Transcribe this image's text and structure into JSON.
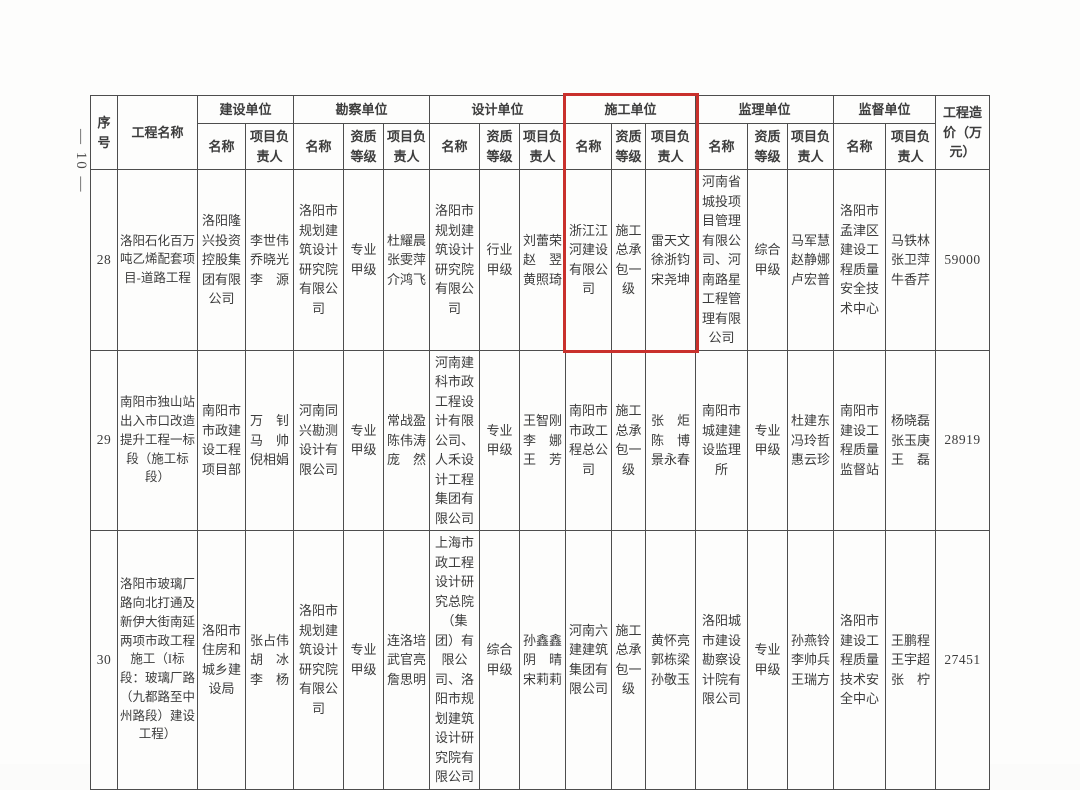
{
  "page": {
    "page_number": "— 10 —",
    "highlight_color": "#c9302c"
  },
  "header": {
    "col_index": "序号",
    "col_project": "工程名称",
    "col_cost": "工程造价（万元）",
    "sub_name": "名称",
    "sub_grade": "资质等级",
    "sub_manager": "项目负责人",
    "groups": {
      "jianshe": "建设单位",
      "kancha": "勘察单位",
      "sheji": "设计单位",
      "shigong": "施工单位",
      "jianli": "监理单位",
      "jiandu": "监督单位"
    }
  },
  "highlight": {
    "target_group": "施工单位",
    "rows_covered": [
      "header",
      "28"
    ]
  },
  "rows": [
    {
      "no": "28",
      "project": "洛阳石化百万吨乙烯配套项目-道路工程",
      "jianshe": {
        "name": "洛阳隆兴投资控股集团有限公司",
        "manager": [
          "李世伟",
          "乔晓光",
          "李　源"
        ]
      },
      "kancha": {
        "name": "洛阳市规划建筑设计研究院有限公司",
        "grade": "专业甲级",
        "manager": [
          "杜耀晨",
          "张雯萍",
          "介鸿飞"
        ]
      },
      "sheji": {
        "name": "洛阳市规划建筑设计研究院有限公司",
        "grade": "行业甲级",
        "manager": [
          "刘蕾荣",
          "赵　翌",
          "黄照琦"
        ]
      },
      "shigong": {
        "name": "浙江江河建设有限公司",
        "grade": "施工总承包一级",
        "manager": [
          "雷天文",
          "徐浙钧",
          "宋尧坤"
        ]
      },
      "jianli": {
        "name": "河南省城投项目管理有限公司、河南路星工程管理有限公司",
        "grade": "综合甲级",
        "manager": [
          "马军慧",
          "赵静娜",
          "卢宏普"
        ]
      },
      "jiandu": {
        "name": "洛阳市孟津区建设工程质量安全技术中心",
        "manager": [
          "马铁林",
          "张卫萍",
          "牛香芹"
        ]
      },
      "cost": "59000"
    },
    {
      "no": "29",
      "project": "南阳市独山站出入市口改造提升工程一标段（施工标段）",
      "jianshe": {
        "name": "南阳市市政建设工程项目部",
        "manager": [
          "万　钊",
          "马　帅",
          "倪相娟"
        ]
      },
      "kancha": {
        "name": "河南同兴勘测设计有限公司",
        "grade": "专业甲级",
        "manager": [
          "常战盈",
          "陈伟涛",
          "庞　然"
        ]
      },
      "sheji": {
        "name": "河南建科市政工程设计有限公司、人禾设计工程集团有限公司",
        "grade": "专业甲级",
        "manager": [
          "王智刚",
          "李　娜",
          "王　芳"
        ]
      },
      "shigong": {
        "name": "南阳市市政工程总公司",
        "grade": "施工总承包一级",
        "manager": [
          "张　炬",
          "陈　博",
          "景永春"
        ]
      },
      "jianli": {
        "name": "南阳市城建建设监理所",
        "grade": "专业甲级",
        "manager": [
          "杜建东",
          "冯玲哲",
          "惠云珍"
        ]
      },
      "jiandu": {
        "name": "南阳市建设工程质量监督站",
        "manager": [
          "杨晓磊",
          "张玉庚",
          "王　磊"
        ]
      },
      "cost": "28919"
    },
    {
      "no": "30",
      "project": "洛阳市玻璃厂路向北打通及新伊大街南延两项市政工程施工（I标段：玻璃厂路（九都路至中州路段）建设工程）",
      "jianshe": {
        "name": "洛阳市住房和城乡建设局",
        "manager": [
          "张占伟",
          "胡　冰",
          "李　杨"
        ]
      },
      "kancha": {
        "name": "洛阳市规划建筑设计研究院有限公司",
        "grade": "专业甲级",
        "manager": [
          "连洛培",
          "武官亮",
          "詹思明"
        ]
      },
      "sheji": {
        "name": "上海市政工程设计研究总院（集团）有限公司、洛阳市规划建筑设计研究院有限公司",
        "grade": "综合甲级",
        "manager": [
          "孙鑫鑫",
          "阴　晴",
          "宋莉莉"
        ]
      },
      "shigong": {
        "name": "河南六建建筑集团有限公司",
        "grade": "施工总承包一级",
        "manager": [
          "黄怀亮",
          "郭栋梁",
          "孙敬玉"
        ]
      },
      "jianli": {
        "name": "洛阳城市建设勘察设计院有限公司",
        "grade": "专业甲级",
        "manager": [
          "孙燕铃",
          "李帅兵",
          "王瑞方"
        ]
      },
      "jiandu": {
        "name": "洛阳市建设工程质量技术安全中心",
        "manager": [
          "王鹏程",
          "王宇超",
          "张　柠"
        ]
      },
      "cost": "27451"
    }
  ]
}
